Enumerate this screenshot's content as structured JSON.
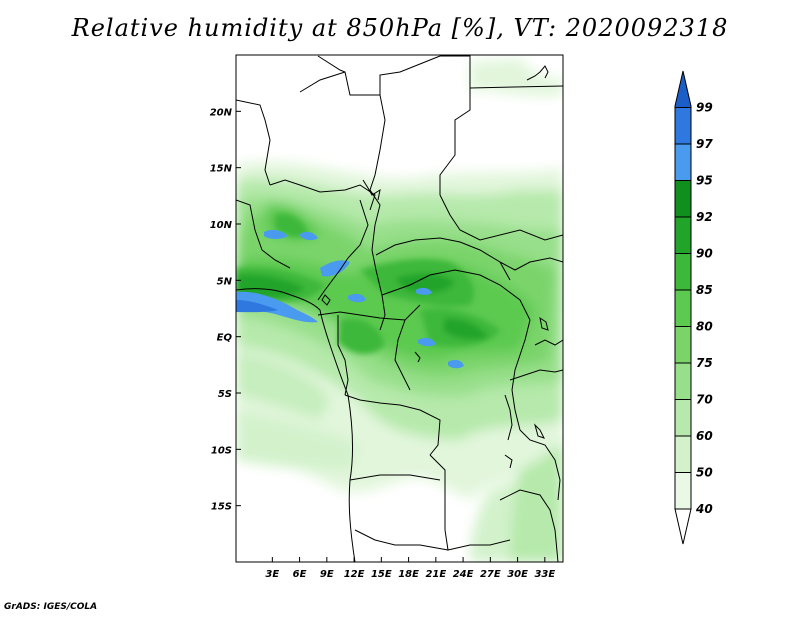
{
  "title": "Relative humidity at 850hPa [%], VT: 2020092318",
  "credit": "GrADS: IGES/COLA",
  "map": {
    "lon_range": [
      -1,
      35
    ],
    "lat_range": [
      -20,
      25
    ],
    "lon_ticks": [
      {
        "value": 3,
        "label": "3E"
      },
      {
        "value": 6,
        "label": "6E"
      },
      {
        "value": 9,
        "label": "9E"
      },
      {
        "value": 12,
        "label": "12E"
      },
      {
        "value": 15,
        "label": "15E"
      },
      {
        "value": 18,
        "label": "18E"
      },
      {
        "value": 21,
        "label": "21E"
      },
      {
        "value": 24,
        "label": "24E"
      },
      {
        "value": 27,
        "label": "27E"
      },
      {
        "value": 30,
        "label": "30E"
      },
      {
        "value": 33,
        "label": "33E"
      }
    ],
    "lat_ticks": [
      {
        "value": 20,
        "label": "20N"
      },
      {
        "value": 15,
        "label": "15N"
      },
      {
        "value": 10,
        "label": "10N"
      },
      {
        "value": 5,
        "label": "5N"
      },
      {
        "value": 0,
        "label": "EQ"
      },
      {
        "value": -5,
        "label": "5S"
      },
      {
        "value": -10,
        "label": "10S"
      },
      {
        "value": -15,
        "label": "15S"
      }
    ]
  },
  "colorbar": {
    "levels": [
      {
        "label": "40",
        "color": "#eaf8e6"
      },
      {
        "label": "50",
        "color": "#d3f2cc"
      },
      {
        "label": "60",
        "color": "#b6e9ab"
      },
      {
        "label": "70",
        "color": "#98df8b"
      },
      {
        "label": "75",
        "color": "#7ad46a"
      },
      {
        "label": "80",
        "color": "#5cc950"
      },
      {
        "label": "85",
        "color": "#3cb83a"
      },
      {
        "label": "90",
        "color": "#22a42b"
      },
      {
        "label": "92",
        "color": "#108e1e"
      },
      {
        "label": "95",
        "color": "#4a9bef"
      },
      {
        "label": "97",
        "color": "#2e78df"
      },
      {
        "label": "99",
        "color": "#1c5ec8"
      }
    ],
    "bottom_color": "#ffffff"
  }
}
